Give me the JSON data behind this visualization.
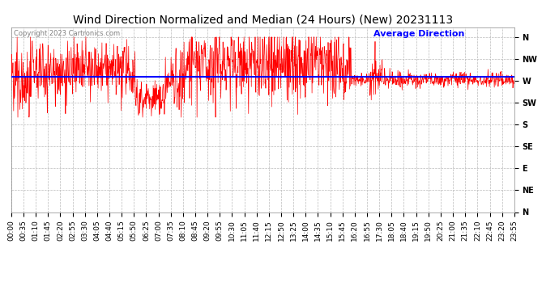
{
  "title": "Wind Direction Normalized and Median (24 Hours) (New) 20231113",
  "copyright": "Copyright 2023 Cartronics.com",
  "legend_label": "Average Direction",
  "legend_color": "blue",
  "line_color": "red",
  "avg_line_color": "blue",
  "background_color": "#ffffff",
  "grid_color": "#bbbbbb",
  "ytick_labels": [
    "N",
    "NW",
    "W",
    "SW",
    "S",
    "SE",
    "E",
    "NE",
    "N"
  ],
  "ytick_values": [
    360,
    315,
    270,
    225,
    180,
    135,
    90,
    45,
    0
  ],
  "ylim": [
    0,
    380
  ],
  "avg_direction": 278,
  "title_fontsize": 10,
  "copyright_fontsize": 6,
  "legend_fontsize": 8,
  "tick_fontsize": 7,
  "x_tick_interval_minutes": 35,
  "figwidth": 6.9,
  "figheight": 3.75,
  "dpi": 100
}
